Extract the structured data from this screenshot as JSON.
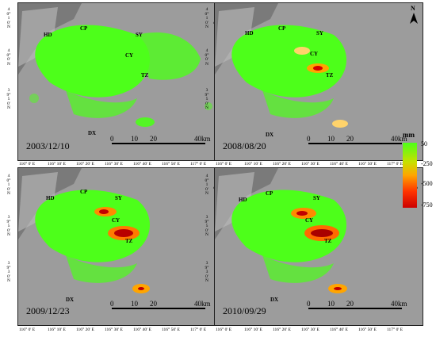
{
  "panels": [
    {
      "date": "2003/12/10",
      "cities": {
        "hd": "HD",
        "cp": "CP",
        "sy": "SY",
        "cy": "CY",
        "tz": "TZ",
        "dx": "DX"
      },
      "subsidence_level": "low"
    },
    {
      "date": "2008/08/20",
      "cities": {
        "hd": "HD",
        "cp": "CP",
        "sy": "SY",
        "cy": "CY",
        "tz": "TZ",
        "dx": "DX"
      },
      "subsidence_level": "moderate"
    },
    {
      "date": "2009/12/23",
      "cities": {
        "hd": "HD",
        "cp": "CP",
        "sy": "SY",
        "cy": "CY",
        "tz": "TZ",
        "dx": "DX"
      },
      "subsidence_level": "high"
    },
    {
      "date": "2010/09/29",
      "cities": {
        "hd": "HD",
        "cp": "CP",
        "sy": "SY",
        "cy": "CY",
        "tz": "TZ",
        "dx": "DX"
      },
      "subsidence_level": "high"
    }
  ],
  "north_arrow": {
    "label": "N"
  },
  "scale_bar": {
    "ticks": [
      "0",
      "10",
      "20",
      "40km"
    ]
  },
  "latitude_labels": [
    "40° 10' N",
    "40° 0' N",
    "39° 50' N",
    "39° 40' N",
    "39° 30' N"
  ],
  "longitude_labels": [
    "116° 0' E",
    "116° 10' E",
    "116° 20' E",
    "116° 30' E",
    "116° 40' E",
    "116° 50' E",
    "117° 0' E"
  ],
  "legend": {
    "unit": "mm",
    "labels": [
      "50",
      "-250",
      "-500",
      "-750"
    ],
    "colors": [
      "#4dff1a",
      "#ffa500",
      "#ff3300",
      "#cc0000"
    ]
  }
}
